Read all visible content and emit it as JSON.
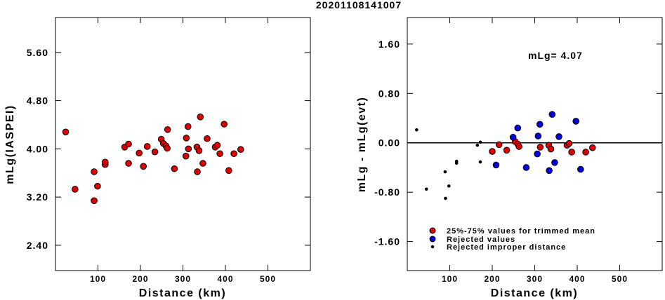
{
  "title": "20201108141007",
  "chart_data": [
    {
      "type": "scatter",
      "xlabel": "Distance (km)",
      "ylabel": "mLg(IASPEI)",
      "xlim": [
        0,
        600
      ],
      "ylim": [
        1.98,
        6.18
      ],
      "xticks": [
        100,
        200,
        300,
        400,
        500
      ],
      "xtick_labels": [
        "100",
        "200",
        "300",
        "400",
        "500"
      ],
      "yticks": [
        2.4,
        3.2,
        4.0,
        4.8,
        5.6
      ],
      "ytick_labels": [
        "2.40",
        "3.20",
        "4.00",
        "4.80",
        "5.60"
      ],
      "series": [
        {
          "marker_color": "#dd0000",
          "points": [
            [
              24,
              4.28
            ],
            [
              46,
              3.33
            ],
            [
              91,
              3.14
            ],
            [
              91,
              3.62
            ],
            [
              99,
              3.38
            ],
            [
              117,
              3.74
            ],
            [
              117,
              3.78
            ],
            [
              163,
              4.03
            ],
            [
              172,
              4.08
            ],
            [
              172,
              3.76
            ],
            [
              197,
              3.93
            ],
            [
              207,
              3.71
            ],
            [
              216,
              4.04
            ],
            [
              234,
              3.95
            ],
            [
              249,
              4.16
            ],
            [
              254,
              4.09
            ],
            [
              260,
              4.05
            ],
            [
              263,
              4.01
            ],
            [
              264,
              4.32
            ],
            [
              280,
              3.67
            ],
            [
              307,
              3.88
            ],
            [
              308,
              4.18
            ],
            [
              312,
              4.37
            ],
            [
              313,
              4.0
            ],
            [
              333,
              4.03
            ],
            [
              334,
              3.62
            ],
            [
              338,
              3.97
            ],
            [
              341,
              4.53
            ],
            [
              347,
              3.76
            ],
            [
              357,
              4.17
            ],
            [
              376,
              4.03
            ],
            [
              381,
              4.06
            ],
            [
              387,
              3.92
            ],
            [
              397,
              4.41
            ],
            [
              408,
              3.64
            ],
            [
              420,
              3.92
            ],
            [
              436,
              3.99
            ]
          ]
        }
      ]
    },
    {
      "type": "scatter",
      "xlabel": "Distance (km)",
      "ylabel": "mLg - mLg(evt)",
      "xlim": [
        0,
        600
      ],
      "ylim": [
        -2.07,
        2.03
      ],
      "xticks": [
        100,
        200,
        300,
        400,
        500
      ],
      "xtick_labels": [
        "100",
        "200",
        "300",
        "400",
        "500"
      ],
      "yticks": [
        -1.6,
        -0.8,
        0.0,
        0.8,
        1.6
      ],
      "ytick_labels": [
        "-1.60",
        "-0.80",
        "0.00",
        "0.80",
        "1.60"
      ],
      "reference_line": 0.0,
      "annotation": "mLg= 4.07",
      "series": [
        {
          "name": "25%-75% values for trimmed mean",
          "marker_color": "#dd0000",
          "points": [
            [
              200,
              -0.14
            ],
            [
              216,
              -0.03
            ],
            [
              234,
              -0.12
            ],
            [
              254,
              0.02
            ],
            [
              260,
              -0.02
            ],
            [
              263,
              -0.06
            ],
            [
              313,
              -0.07
            ],
            [
              333,
              -0.04
            ],
            [
              338,
              -0.1
            ],
            [
              376,
              -0.04
            ],
            [
              381,
              -0.01
            ],
            [
              387,
              -0.15
            ],
            [
              420,
              -0.15
            ],
            [
              436,
              -0.08
            ]
          ]
        },
        {
          "name": "Rejected values",
          "marker_color": "#0000dd",
          "points": [
            [
              209,
              -0.36
            ],
            [
              249,
              0.09
            ],
            [
              260,
              0.24
            ],
            [
              280,
              -0.4
            ],
            [
              306,
              -0.18
            ],
            [
              308,
              0.11
            ],
            [
              312,
              0.3
            ],
            [
              334,
              -0.45
            ],
            [
              341,
              0.46
            ],
            [
              347,
              -0.32
            ],
            [
              357,
              0.1
            ],
            [
              397,
              0.35
            ],
            [
              408,
              -0.43
            ]
          ]
        },
        {
          "name": "Rejected improper distance",
          "marker_color": "#000000",
          "points": [
            [
              22,
              0.21
            ],
            [
              45,
              -0.75
            ],
            [
              89,
              -0.47
            ],
            [
              90,
              -0.9
            ],
            [
              98,
              -0.7
            ],
            [
              116,
              -0.3
            ],
            [
              116,
              -0.33
            ],
            [
              165,
              -0.04
            ],
            [
              172,
              0.01
            ],
            [
              172,
              -0.31
            ]
          ]
        }
      ]
    }
  ]
}
